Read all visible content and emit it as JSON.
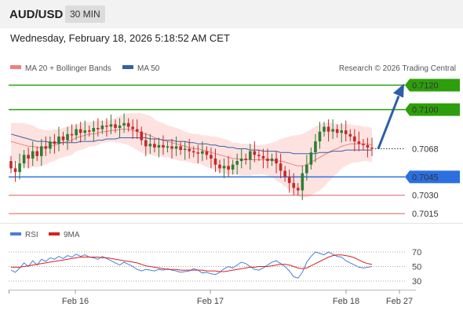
{
  "header": {
    "symbol": "AUD/USD",
    "timeframe": "30 MIN"
  },
  "datetime": "Wednesday, February 18, 2026 5:18:52 AM CET",
  "legend": {
    "ma20_label": "MA 20 + Bollinger Bands",
    "ma50_label": "MA 50"
  },
  "credit": "Research © 2026 Trading Central",
  "colors": {
    "up": "#2e7d32",
    "down": "#c62828",
    "resistance": "#2e9e0c",
    "support": "#2b6fe0",
    "target": "#d96060",
    "ma20": "#f08080",
    "ma50": "#3b5ea8",
    "band": "#fde2e0",
    "arrow": "#2e5ea8",
    "rsi": "#4a7fd6",
    "rsi_ma": "#d92020"
  },
  "chart_data": {
    "type": "candlestick",
    "instrument": "AUD/USD",
    "interval": "30 MIN",
    "x_ticks": [
      "Feb 16",
      "Feb 17",
      "Feb 18",
      "Feb 27"
    ],
    "ylim": [
      0.7008,
      0.7128
    ],
    "current_price": "0.7068",
    "levels": [
      {
        "value": 0.712,
        "label": "0.7120",
        "kind": "resistance"
      },
      {
        "value": 0.71,
        "label": "0.7100",
        "kind": "resistance"
      },
      {
        "value": 0.7045,
        "label": "0.7045",
        "kind": "support"
      },
      {
        "value": 0.703,
        "label": "0.7030",
        "kind": "target"
      },
      {
        "value": 0.7015,
        "label": "0.7015",
        "kind": "target"
      }
    ],
    "forecast": {
      "from": 0.7068,
      "to": 0.712
    },
    "close": [
      0.7052,
      0.7049,
      0.7056,
      0.7063,
      0.706,
      0.7066,
      0.7062,
      0.707,
      0.7068,
      0.7074,
      0.7072,
      0.7078,
      0.7075,
      0.708,
      0.7079,
      0.7084,
      0.7081,
      0.7083,
      0.7082,
      0.7085,
      0.7084,
      0.7087,
      0.7086,
      0.7088,
      0.7085,
      0.7087,
      0.7089,
      0.7086,
      0.7084,
      0.7082,
      0.7075,
      0.707,
      0.7072,
      0.7069,
      0.7071,
      0.7069,
      0.707,
      0.7068,
      0.707,
      0.7067,
      0.7068,
      0.7066,
      0.7065,
      0.7064,
      0.7066,
      0.7063,
      0.706,
      0.7055,
      0.7052,
      0.7054,
      0.7051,
      0.7055,
      0.7058,
      0.706,
      0.7059,
      0.7066,
      0.7063,
      0.7062,
      0.706,
      0.7058,
      0.706,
      0.7056,
      0.705,
      0.7045,
      0.704,
      0.7036,
      0.7034,
      0.7048,
      0.7055,
      0.7065,
      0.7074,
      0.7082,
      0.7086,
      0.7082,
      0.7084,
      0.7081,
      0.7083,
      0.708,
      0.7078,
      0.7074,
      0.7072,
      0.7071,
      0.7069,
      0.7068
    ],
    "ma20": [
      0.7074,
      0.7073,
      0.7072,
      0.7071,
      0.707,
      0.707,
      0.7069,
      0.7069,
      0.7069,
      0.707,
      0.7071,
      0.7072,
      0.7073,
      0.7074,
      0.7075,
      0.7077,
      0.7078,
      0.7079,
      0.708,
      0.708,
      0.7081,
      0.7082,
      0.7082,
      0.7083,
      0.7083,
      0.7084,
      0.7084,
      0.7084,
      0.7083,
      0.7082,
      0.7081,
      0.708,
      0.7079,
      0.7077,
      0.7076,
      0.7075,
      0.7074,
      0.7073,
      0.7072,
      0.7071,
      0.707,
      0.7069,
      0.7068,
      0.7068,
      0.7067,
      0.7066,
      0.7065,
      0.7064,
      0.7063,
      0.7062,
      0.7061,
      0.706,
      0.706,
      0.7059,
      0.7059,
      0.7059,
      0.7059,
      0.7059,
      0.7059,
      0.7059,
      0.7059,
      0.7058,
      0.7058,
      0.7057,
      0.7056,
      0.7055,
      0.7054,
      0.7054,
      0.7055,
      0.7057,
      0.7059,
      0.7061,
      0.7063,
      0.7065,
      0.7067,
      0.7068,
      0.707,
      0.7071,
      0.7072,
      0.7072,
      0.7072,
      0.7072,
      0.7072,
      0.7071
    ],
    "ma50": [
      0.708,
      0.7079,
      0.7078,
      0.7077,
      0.7076,
      0.7075,
      0.7074,
      0.7074,
      0.7074,
      0.7073,
      0.7073,
      0.7073,
      0.7073,
      0.7073,
      0.7073,
      0.7073,
      0.7074,
      0.7074,
      0.7074,
      0.7074,
      0.7075,
      0.7075,
      0.7076,
      0.7076,
      0.7076,
      0.7077,
      0.7077,
      0.7077,
      0.7077,
      0.7077,
      0.7077,
      0.7077,
      0.7076,
      0.7076,
      0.7076,
      0.7075,
      0.7075,
      0.7075,
      0.7074,
      0.7074,
      0.7074,
      0.7073,
      0.7073,
      0.7072,
      0.7072,
      0.7072,
      0.7071,
      0.7071,
      0.707,
      0.707,
      0.7069,
      0.7069,
      0.7068,
      0.7068,
      0.7068,
      0.7067,
      0.7067,
      0.7067,
      0.7066,
      0.7066,
      0.7066,
      0.7066,
      0.7065,
      0.7065,
      0.7065,
      0.7064,
      0.7064,
      0.7064,
      0.7064,
      0.7064,
      0.7064,
      0.7065,
      0.7065,
      0.7065,
      0.7066,
      0.7066,
      0.7066,
      0.7067,
      0.7067,
      0.7067,
      0.7067,
      0.7067,
      0.7067,
      0.7067
    ],
    "band_width": [
      0.0015,
      0.0016,
      0.0017,
      0.0018,
      0.0018,
      0.0017,
      0.0016,
      0.0015,
      0.0014,
      0.0013,
      0.0013,
      0.0012,
      0.0012,
      0.0012,
      0.0012,
      0.0011,
      0.0011,
      0.0011,
      0.001,
      0.001,
      0.001,
      0.0009,
      0.0009,
      0.0009,
      0.001,
      0.0011,
      0.0012,
      0.0013,
      0.0014,
      0.0015,
      0.0016,
      0.0016,
      0.0016,
      0.0015,
      0.0014,
      0.0014,
      0.0013,
      0.0013,
      0.0013,
      0.0013,
      0.0012,
      0.0012,
      0.0012,
      0.0012,
      0.0012,
      0.0013,
      0.0013,
      0.0014,
      0.0014,
      0.0014,
      0.0014,
      0.0013,
      0.0013,
      0.0013,
      0.0013,
      0.0013,
      0.0012,
      0.0012,
      0.0012,
      0.0013,
      0.0014,
      0.0016,
      0.0018,
      0.002,
      0.0022,
      0.0024,
      0.0025,
      0.0026,
      0.0027,
      0.0027,
      0.0027,
      0.0027,
      0.0026,
      0.0024,
      0.0022,
      0.002,
      0.0018,
      0.0017,
      0.0016,
      0.0015,
      0.0015,
      0.0014,
      0.0014,
      0.0014
    ],
    "rsi": {
      "legend": [
        "RSI",
        "9MA"
      ],
      "ticks": [
        "70",
        "50",
        "30"
      ],
      "ylim": [
        20,
        80
      ],
      "rsi": [
        45,
        42,
        48,
        55,
        50,
        58,
        52,
        60,
        57,
        62,
        60,
        64,
        61,
        65,
        63,
        67,
        64,
        66,
        63,
        62,
        60,
        64,
        61,
        58,
        55,
        52,
        56,
        53,
        50,
        46,
        44,
        46,
        45,
        44,
        46,
        45,
        47,
        45,
        44,
        42,
        43,
        44,
        47,
        45,
        41,
        42,
        40,
        39,
        42,
        47,
        50,
        48,
        52,
        56,
        54,
        50,
        46,
        45,
        48,
        52,
        56,
        58,
        54,
        50,
        44,
        36,
        34,
        42,
        56,
        64,
        70,
        68,
        66,
        70,
        67,
        64,
        63,
        58,
        55,
        52,
        49,
        48,
        49,
        50
      ],
      "ma": [
        49,
        49,
        49,
        50,
        51,
        52,
        53,
        54,
        55,
        56,
        57,
        58,
        59,
        60,
        61,
        62,
        63,
        63,
        63,
        63,
        63,
        62,
        62,
        61,
        60,
        59,
        58,
        57,
        56,
        55,
        53,
        51,
        50,
        49,
        48,
        47,
        46,
        46,
        46,
        45,
        45,
        45,
        45,
        45,
        45,
        44,
        44,
        44,
        43,
        43,
        44,
        45,
        46,
        47,
        48,
        49,
        49,
        50,
        50,
        50,
        51,
        52,
        53,
        53,
        52,
        50,
        48,
        47,
        48,
        51,
        54,
        57,
        60,
        63,
        65,
        66,
        66,
        65,
        64,
        62,
        59,
        56,
        54,
        53
      ]
    }
  }
}
